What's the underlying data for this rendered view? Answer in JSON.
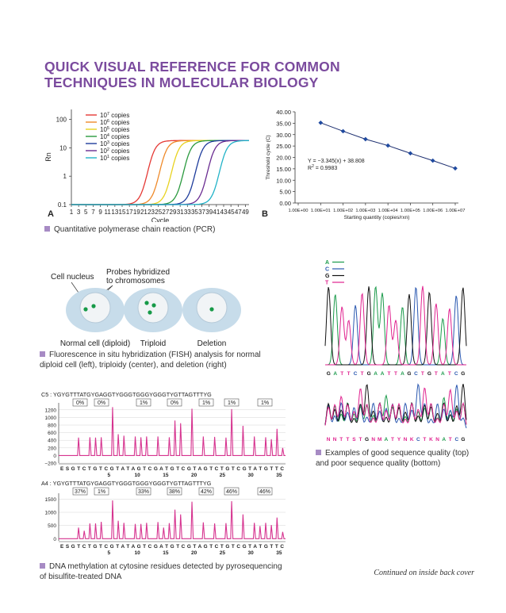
{
  "title": {
    "line1": "QUICK VISUAL REFERENCE FOR COMMON",
    "line2": "TECHNIQUES IN MOLECULAR BIOLOGY"
  },
  "colors": {
    "title": "#7b4b9e",
    "bullet": "#a78bc4",
    "pyro": "#d6338f",
    "A": "#1a9a4a",
    "C": "#2a58b0",
    "G": "#111111",
    "T": "#e0238f"
  },
  "pcr": {
    "caption": "Quantitative polymerase chain reaction (PCR)",
    "panelA": "A",
    "panelB": "B"
  },
  "fish": {
    "caption_line1": "Fluorescence in situ hybridization (FISH) analysis for normal",
    "caption_line2": "diploid cell (left), triploidy (center), and deletion (right)",
    "label_nucleus": "Cell nucleus",
    "label_probes_line1": "Probes hybridized",
    "label_probes_line2": "to chromosomes",
    "cells": [
      {
        "label": "Normal cell (diploid)",
        "dots": 2
      },
      {
        "label": "Triploid",
        "dots": 3
      },
      {
        "label": "Deletion",
        "dots": 1
      }
    ]
  },
  "sequencing": {
    "caption_line1": "Examples of good sequence quality (top)",
    "caption_line2": "and poor sequence quality (bottom)",
    "legend": [
      "A",
      "C",
      "G",
      "T"
    ],
    "good_sequence": [
      "G",
      "A",
      "T",
      "T",
      "C",
      "T",
      "G",
      "A",
      "A",
      "T",
      "T",
      "A",
      "G",
      "C",
      "T",
      "G",
      "T",
      "A",
      "T",
      "C",
      "G"
    ],
    "poor_sequence": [
      "N",
      "N",
      "T",
      "T",
      "S",
      "T",
      "G",
      "N",
      "M",
      "A",
      "T",
      "Y",
      "N",
      "K",
      "C",
      "T",
      "K",
      "N",
      "A",
      "T",
      "C",
      "G"
    ]
  },
  "pyro": {
    "caption_line1": "DNA methylation at cytosine residues detected by pyrosequencing",
    "caption_line2": "of bisulfite-treated DNA",
    "panels": [
      {
        "label": "C5 : YGYGTTTATGYGAGGTYGGGTGGGYGGGTYGTTAGTTTYG",
        "percents": [
          "0%",
          "0%",
          "1%",
          "0%",
          "1%",
          "1%",
          "1%"
        ],
        "yticks": [
          "1200",
          "1000",
          "800",
          "600",
          "400",
          "200",
          "0",
          "−200"
        ]
      },
      {
        "label": "A4 : YGYGTTTATGYGAGGTYGGGTGGGYGGGTYGTTAGTTTYG",
        "percents": [
          "37%",
          "1%",
          "33%",
          "38%",
          "42%",
          "46%",
          "46%"
        ],
        "yticks": [
          "1500",
          "1000",
          "500",
          "0"
        ]
      }
    ],
    "dispensation": "E S G T C T G T C G T A T A G T C G A T G T C G T A G T C T G T C G T A T G T T C",
    "position_ticks": [
      "5",
      "10",
      "15",
      "20",
      "25",
      "30",
      "35"
    ]
  },
  "footer": "Continued on inside back cover",
  "chart_data": [
    {
      "type": "line",
      "ylabel": "Rn",
      "xlabel": "Cycle",
      "yscale": "log",
      "ylim": [
        0.1,
        100
      ],
      "xlim": [
        1,
        50
      ],
      "xticks": [
        "1",
        "3",
        "5",
        "7",
        "9",
        "11",
        "13",
        "15",
        "17",
        "19",
        "21",
        "23",
        "25",
        "27",
        "29",
        "31",
        "33",
        "35",
        "37",
        "39",
        "41",
        "43",
        "45",
        "47",
        "49"
      ],
      "yticks": [
        "0.1",
        "1",
        "10",
        "100"
      ],
      "legend_placement": "top-left",
      "series": [
        {
          "name": "10",
          "exp": "7",
          "suffix": " copies",
          "color": "#e53935",
          "midpoint": 22.0
        },
        {
          "name": "10",
          "exp": "6",
          "suffix": " copies",
          "color": "#ef8a2a",
          "midpoint": 25.3
        },
        {
          "name": "10",
          "exp": "5",
          "suffix": " copies",
          "color": "#e8d21f",
          "midpoint": 28.6
        },
        {
          "name": "10",
          "exp": "4",
          "suffix": " copies",
          "color": "#2b9a3f",
          "midpoint": 31.9
        },
        {
          "name": "10",
          "exp": "3",
          "suffix": " copies",
          "color": "#1f3d9c",
          "midpoint": 35.2
        },
        {
          "name": "10",
          "exp": "2",
          "suffix": " copies",
          "color": "#6a2c91",
          "midpoint": 38.5
        },
        {
          "name": "10",
          "exp": "1",
          "suffix": " copies",
          "color": "#22b3c8",
          "midpoint": 41.8
        }
      ]
    },
    {
      "type": "scatter",
      "ylabel": "Threshold cycle (C)",
      "xlabel": "Starting quantity (copies/rxn)",
      "xscale": "log",
      "ylim": [
        0,
        40
      ],
      "yticks": [
        "0.00",
        "5.00",
        "10.00",
        "15.00",
        "20.00",
        "25.00",
        "30.00",
        "35.00",
        "40.00"
      ],
      "xticks": [
        "1.00E+00",
        "1.00E+01",
        "1.00E+02",
        "1.00E+03",
        "1.00E+04",
        "1.00E+05",
        "1.00E+06",
        "1.00E+07"
      ],
      "equation": "Y = −3.345(x) + 38.808",
      "r2_label": "R",
      "r2_exp": "2",
      "r2_value": " = 0.9983",
      "x": [
        1,
        2,
        3,
        4,
        5,
        6,
        7
      ],
      "y": [
        35.2,
        31.5,
        28.0,
        25.2,
        21.8,
        18.6,
        15.2
      ]
    }
  ]
}
